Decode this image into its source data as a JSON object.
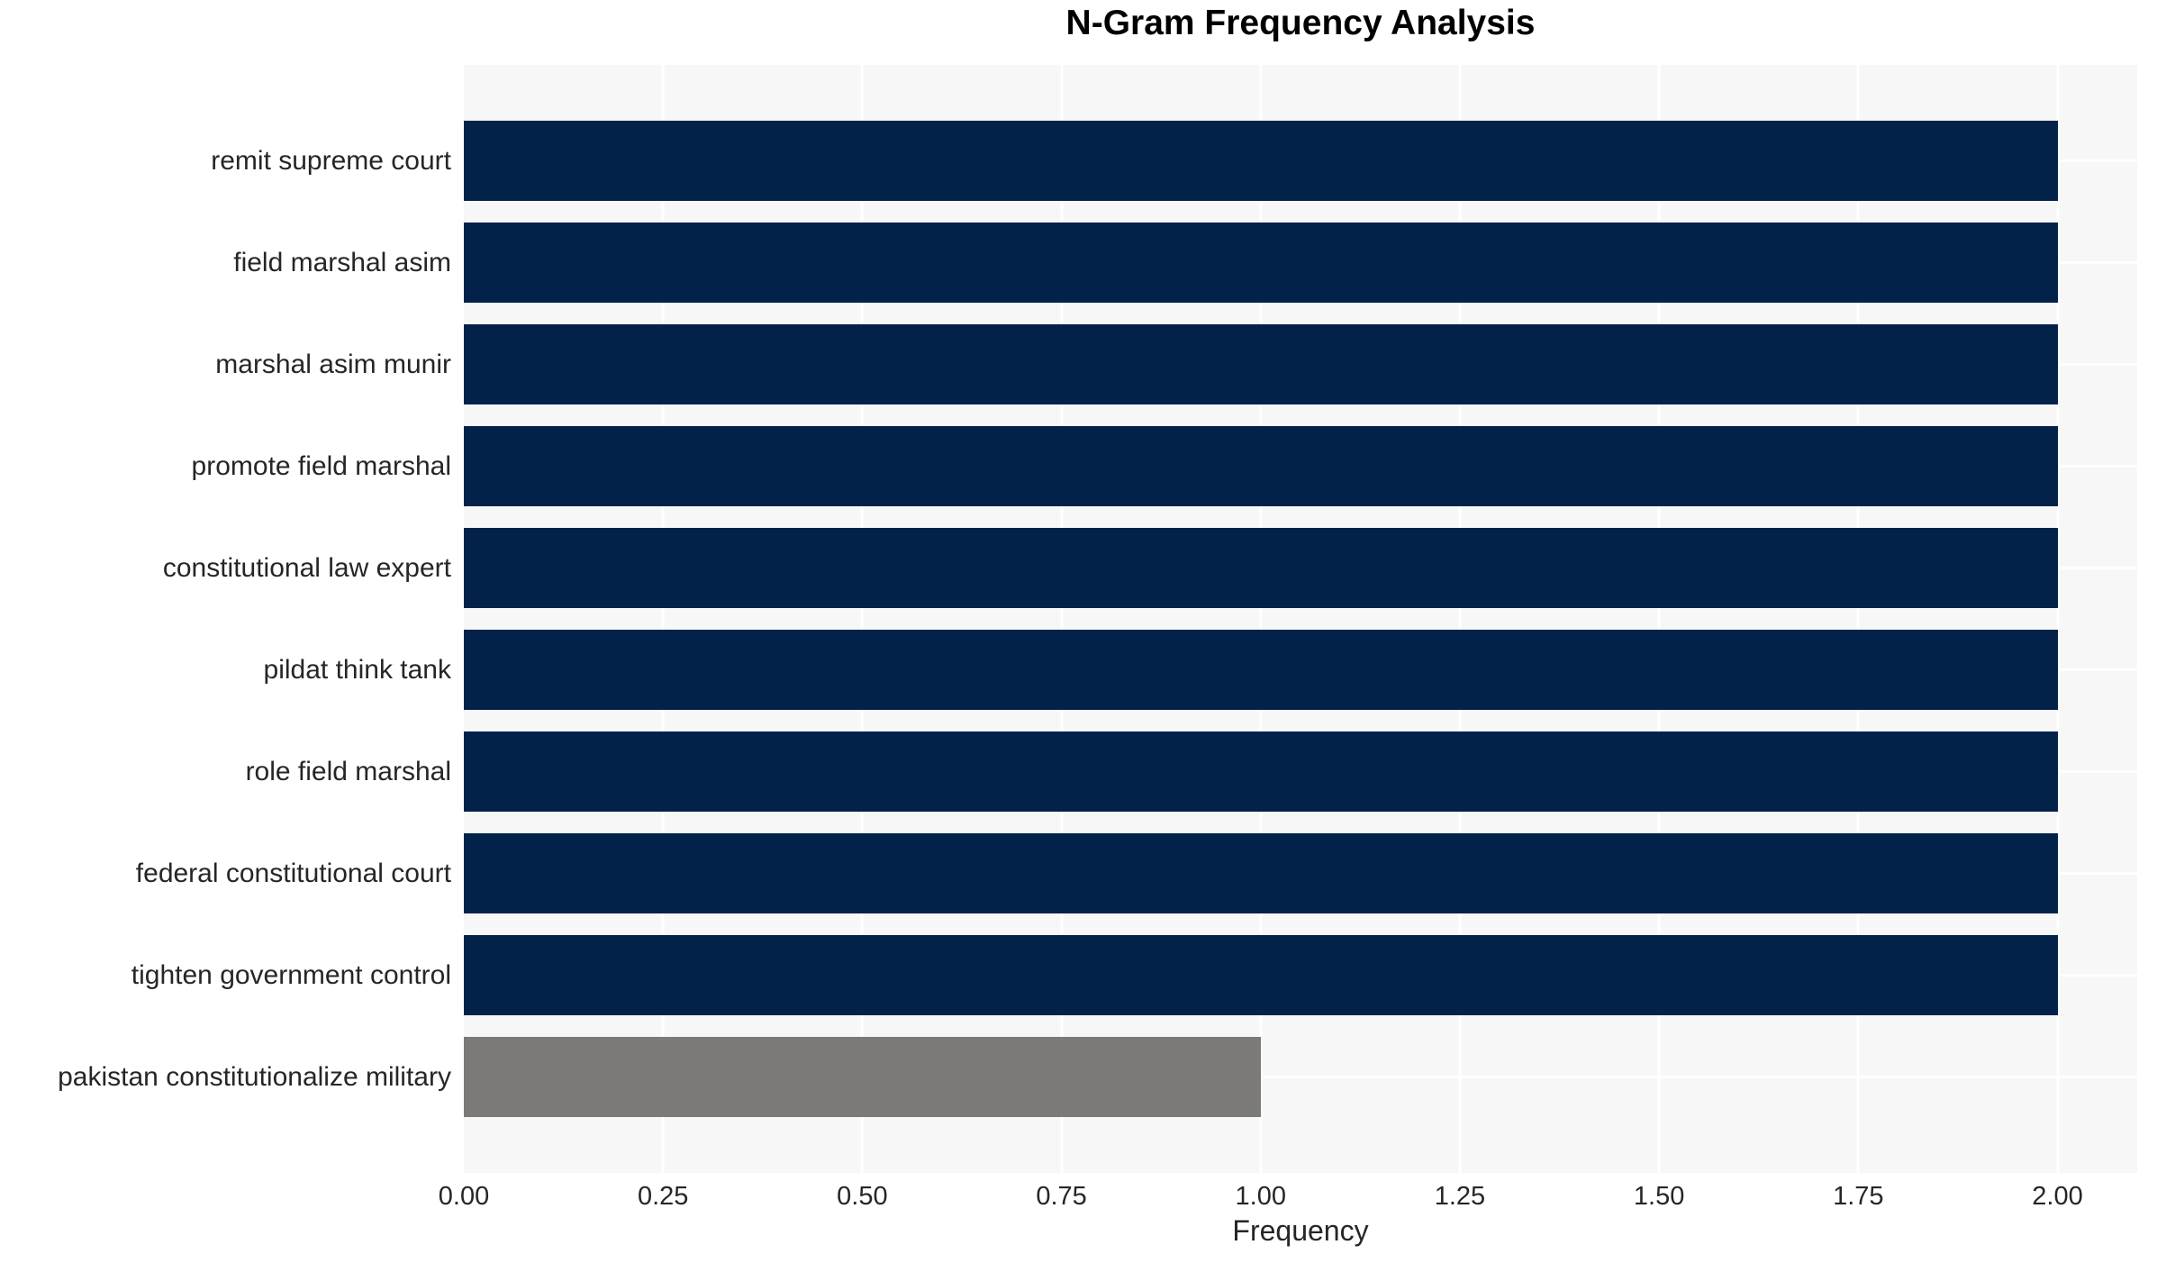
{
  "chart_data": {
    "type": "bar",
    "orientation": "horizontal",
    "title": "N-Gram Frequency Analysis",
    "xlabel": "Frequency",
    "ylabel": "",
    "categories": [
      "remit supreme court",
      "field marshal asim",
      "marshal asim munir",
      "promote field marshal",
      "constitutional law expert",
      "pildat think tank",
      "role field marshal",
      "federal constitutional court",
      "tighten government control",
      "pakistan constitutionalize military"
    ],
    "values": [
      2,
      2,
      2,
      2,
      2,
      2,
      2,
      2,
      2,
      1
    ],
    "bar_colors": [
      "#02224a",
      "#02224a",
      "#02224a",
      "#02224a",
      "#02224a",
      "#02224a",
      "#02224a",
      "#02224a",
      "#02224a",
      "#7b7a77"
    ],
    "xlim": [
      0,
      2.1
    ],
    "xticks": [
      {
        "value": 0.0,
        "label": "0.00"
      },
      {
        "value": 0.25,
        "label": "0.25"
      },
      {
        "value": 0.5,
        "label": "0.50"
      },
      {
        "value": 0.75,
        "label": "0.75"
      },
      {
        "value": 1.0,
        "label": "1.00"
      },
      {
        "value": 1.25,
        "label": "1.25"
      },
      {
        "value": 1.5,
        "label": "1.50"
      },
      {
        "value": 1.75,
        "label": "1.75"
      },
      {
        "value": 2.0,
        "label": "2.00"
      }
    ],
    "grid": true,
    "legend": false,
    "colors": {
      "bar_default": "#02224a",
      "bar_highlight": "#7b7a77",
      "plot_background": "#f7f7f7",
      "gridline": "#ffffff",
      "axis_text": "#262626",
      "title_text": "#000000"
    }
  }
}
